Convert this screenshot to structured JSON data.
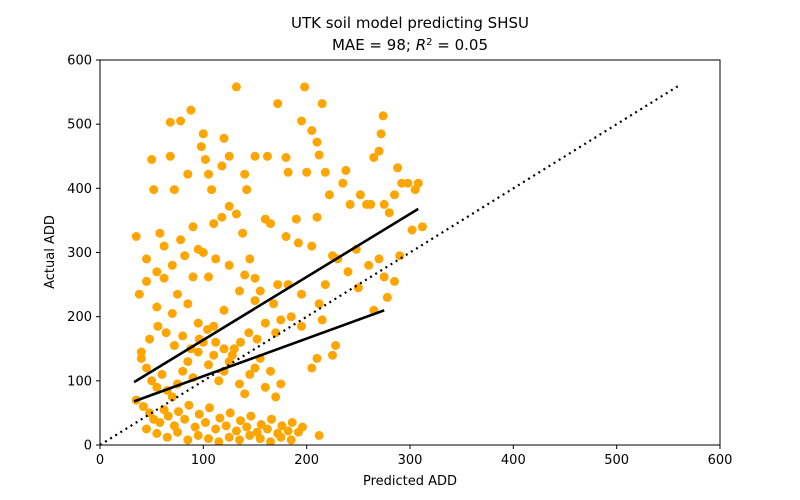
{
  "chart_data": {
    "type": "scatter",
    "title": "UTK soil model predicting SHSU",
    "subtitle_prefix": "MAE = 98; ",
    "subtitle_r": "R",
    "subtitle_sup": "2",
    "subtitle_suffix": " = 0.05",
    "xlabel": "Predicted ADD",
    "ylabel": "Actual ADD",
    "xlim": [
      0,
      600
    ],
    "ylim": [
      0,
      600
    ],
    "xticks": [
      0,
      100,
      200,
      300,
      400,
      500,
      600
    ],
    "yticks": [
      0,
      100,
      200,
      300,
      400,
      500,
      600
    ],
    "grid": false,
    "colors": {
      "points": "#FFA500",
      "lines": "#000000"
    },
    "series": [
      {
        "type": "scatter",
        "points": [
          [
            35,
            325
          ],
          [
            38,
            235
          ],
          [
            45,
            290
          ],
          [
            50,
            445
          ],
          [
            52,
            398
          ],
          [
            68,
            450
          ],
          [
            72,
            398
          ],
          [
            78,
            505
          ],
          [
            68,
            503
          ],
          [
            88,
            522
          ],
          [
            85,
            422
          ],
          [
            98,
            465
          ],
          [
            100,
            485
          ],
          [
            102,
            445
          ],
          [
            105,
            422
          ],
          [
            108,
            398
          ],
          [
            118,
            435
          ],
          [
            120,
            478
          ],
          [
            125,
            450
          ],
          [
            132,
            558
          ],
          [
            140,
            422
          ],
          [
            142,
            398
          ],
          [
            150,
            450
          ],
          [
            162,
            450
          ],
          [
            172,
            532
          ],
          [
            180,
            448
          ],
          [
            182,
            425
          ],
          [
            190,
            352
          ],
          [
            195,
            505
          ],
          [
            198,
            558
          ],
          [
            200,
            425
          ],
          [
            205,
            490
          ],
          [
            210,
            472
          ],
          [
            212,
            452
          ],
          [
            215,
            532
          ],
          [
            218,
            425
          ],
          [
            222,
            390
          ],
          [
            235,
            408
          ],
          [
            238,
            428
          ],
          [
            242,
            375
          ],
          [
            248,
            305
          ],
          [
            252,
            390
          ],
          [
            258,
            375
          ],
          [
            262,
            375
          ],
          [
            265,
            448
          ],
          [
            270,
            458
          ],
          [
            272,
            485
          ],
          [
            274,
            513
          ],
          [
            275,
            375
          ],
          [
            280,
            362
          ],
          [
            285,
            390
          ],
          [
            288,
            432
          ],
          [
            292,
            408
          ],
          [
            298,
            408
          ],
          [
            302,
            335
          ],
          [
            305,
            398
          ],
          [
            308,
            408
          ],
          [
            312,
            340
          ],
          [
            45,
            255
          ],
          [
            55,
            270
          ],
          [
            62,
            260
          ],
          [
            70,
            280
          ],
          [
            75,
            235
          ],
          [
            82,
            295
          ],
          [
            90,
            262
          ],
          [
            95,
            305
          ],
          [
            105,
            262
          ],
          [
            112,
            290
          ],
          [
            118,
            355
          ],
          [
            125,
            372
          ],
          [
            132,
            360
          ],
          [
            138,
            330
          ],
          [
            145,
            290
          ],
          [
            150,
            260
          ],
          [
            160,
            352
          ],
          [
            165,
            345
          ],
          [
            172,
            250
          ],
          [
            180,
            325
          ],
          [
            192,
            315
          ],
          [
            205,
            310
          ],
          [
            210,
            355
          ],
          [
            218,
            250
          ],
          [
            225,
            295
          ],
          [
            230,
            290
          ],
          [
            240,
            270
          ],
          [
            250,
            245
          ],
          [
            260,
            280
          ],
          [
            270,
            290
          ],
          [
            278,
            230
          ],
          [
            265,
            210
          ],
          [
            275,
            262
          ],
          [
            285,
            255
          ],
          [
            290,
            295
          ],
          [
            228,
            155
          ],
          [
            225,
            140
          ],
          [
            210,
            135
          ],
          [
            205,
            120
          ],
          [
            195,
            185
          ],
          [
            215,
            195
          ],
          [
            212,
            220
          ],
          [
            55,
            215
          ],
          [
            70,
            205
          ],
          [
            85,
            220
          ],
          [
            95,
            190
          ],
          [
            110,
            185
          ],
          [
            120,
            210
          ],
          [
            135,
            240
          ],
          [
            150,
            225
          ],
          [
            160,
            190
          ],
          [
            170,
            175
          ],
          [
            175,
            195
          ],
          [
            185,
            200
          ],
          [
            40,
            135
          ],
          [
            45,
            120
          ],
          [
            50,
            100
          ],
          [
            55,
            90
          ],
          [
            60,
            110
          ],
          [
            65,
            85
          ],
          [
            70,
            75
          ],
          [
            75,
            95
          ],
          [
            80,
            115
          ],
          [
            85,
            130
          ],
          [
            90,
            105
          ],
          [
            95,
            145
          ],
          [
            100,
            160
          ],
          [
            105,
            125
          ],
          [
            110,
            140
          ],
          [
            115,
            100
          ],
          [
            120,
            115
          ],
          [
            125,
            130
          ],
          [
            130,
            150
          ],
          [
            135,
            95
          ],
          [
            140,
            80
          ],
          [
            145,
            110
          ],
          [
            150,
            120
          ],
          [
            155,
            135
          ],
          [
            160,
            90
          ],
          [
            165,
            115
          ],
          [
            170,
            75
          ],
          [
            175,
            95
          ],
          [
            35,
            70
          ],
          [
            42,
            60
          ],
          [
            48,
            50
          ],
          [
            52,
            40
          ],
          [
            58,
            35
          ],
          [
            62,
            55
          ],
          [
            66,
            45
          ],
          [
            72,
            30
          ],
          [
            76,
            52
          ],
          [
            82,
            40
          ],
          [
            86,
            62
          ],
          [
            92,
            28
          ],
          [
            96,
            48
          ],
          [
            102,
            35
          ],
          [
            106,
            58
          ],
          [
            112,
            25
          ],
          [
            116,
            42
          ],
          [
            122,
            30
          ],
          [
            126,
            50
          ],
          [
            132,
            22
          ],
          [
            136,
            38
          ],
          [
            142,
            28
          ],
          [
            146,
            45
          ],
          [
            152,
            20
          ],
          [
            156,
            32
          ],
          [
            162,
            25
          ],
          [
            166,
            40
          ],
          [
            172,
            18
          ],
          [
            176,
            30
          ],
          [
            182,
            22
          ],
          [
            186,
            35
          ],
          [
            192,
            20
          ],
          [
            196,
            28
          ],
          [
            212,
            15
          ],
          [
            45,
            25
          ],
          [
            55,
            18
          ],
          [
            65,
            12
          ],
          [
            75,
            20
          ],
          [
            85,
            8
          ],
          [
            95,
            15
          ],
          [
            105,
            10
          ],
          [
            115,
            5
          ],
          [
            125,
            12
          ],
          [
            135,
            8
          ],
          [
            145,
            15
          ],
          [
            155,
            10
          ],
          [
            165,
            5
          ],
          [
            175,
            12
          ],
          [
            185,
            8
          ],
          [
            40,
            145
          ],
          [
            48,
            165
          ],
          [
            56,
            185
          ],
          [
            64,
            175
          ],
          [
            72,
            155
          ],
          [
            80,
            170
          ],
          [
            88,
            150
          ],
          [
            96,
            165
          ],
          [
            104,
            180
          ],
          [
            112,
            160
          ],
          [
            120,
            150
          ],
          [
            128,
            140
          ],
          [
            136,
            160
          ],
          [
            144,
            175
          ],
          [
            152,
            165
          ],
          [
            58,
            330
          ],
          [
            62,
            310
          ],
          [
            78,
            320
          ],
          [
            90,
            340
          ],
          [
            100,
            300
          ],
          [
            110,
            345
          ],
          [
            125,
            280
          ],
          [
            140,
            265
          ],
          [
            155,
            240
          ],
          [
            168,
            220
          ],
          [
            182,
            250
          ],
          [
            195,
            235
          ]
        ]
      },
      {
        "type": "line",
        "style": "solid",
        "points": [
          [
            33,
            98
          ],
          [
            308,
            368
          ]
        ]
      },
      {
        "type": "line",
        "style": "solid",
        "points": [
          [
            33,
            68
          ],
          [
            275,
            210
          ]
        ]
      },
      {
        "type": "line",
        "style": "dotted",
        "points": [
          [
            0,
            0
          ],
          [
            560,
            560
          ]
        ]
      }
    ]
  }
}
